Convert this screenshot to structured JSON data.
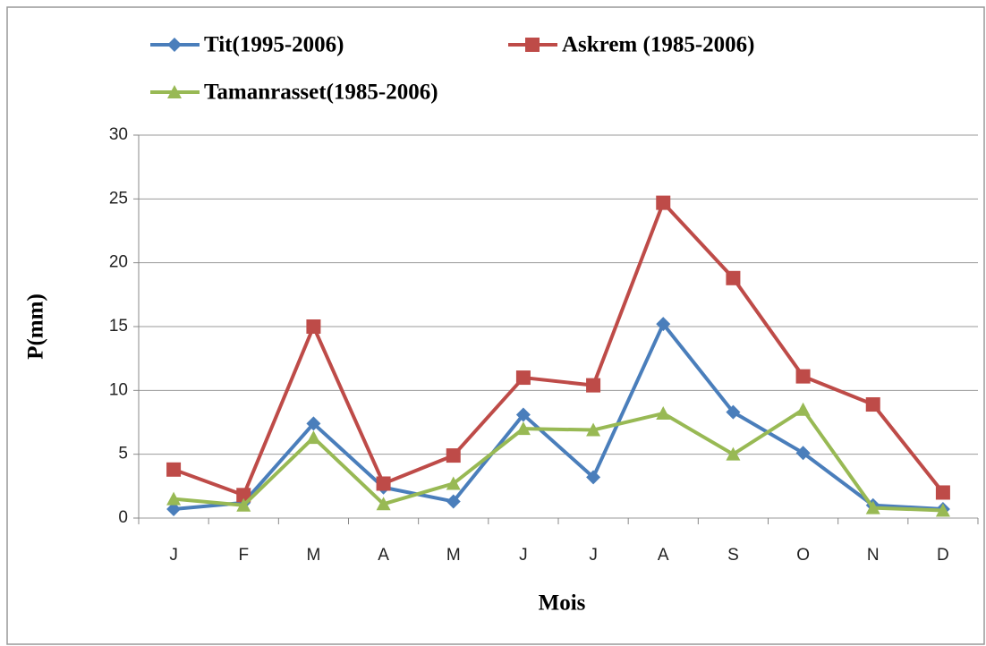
{
  "chart_data": {
    "type": "line",
    "x_label": "Mois",
    "y_label": "P(mm)",
    "categories": [
      "J",
      "F",
      "M",
      "A",
      "M",
      "J",
      "J",
      "A",
      "S",
      "O",
      "N",
      "D"
    ],
    "series": [
      {
        "name": "Tit(1995-2006)",
        "color": "#4a7ebb",
        "marker": "diamond",
        "values": [
          0.7,
          1.2,
          7.4,
          2.4,
          1.3,
          8.1,
          3.2,
          15.2,
          8.3,
          5.1,
          1.0,
          0.7
        ]
      },
      {
        "name": "Askrem (1985-2006)",
        "color": "#be4b48",
        "marker": "square",
        "values": [
          3.8,
          1.8,
          15.0,
          2.7,
          4.9,
          11.0,
          10.4,
          24.7,
          18.8,
          11.1,
          8.9,
          2.0
        ]
      },
      {
        "name": "Tamanrasset(1985-2006)",
        "color": "#98b954",
        "marker": "triangle",
        "values": [
          1.5,
          1.0,
          6.3,
          1.1,
          2.7,
          7.0,
          6.9,
          8.2,
          5.0,
          8.5,
          0.8,
          0.6
        ]
      }
    ],
    "ylim": [
      0,
      30
    ],
    "yticks": [
      0,
      5,
      10,
      15,
      20,
      25,
      30
    ],
    "grid": true,
    "legend": "top"
  }
}
